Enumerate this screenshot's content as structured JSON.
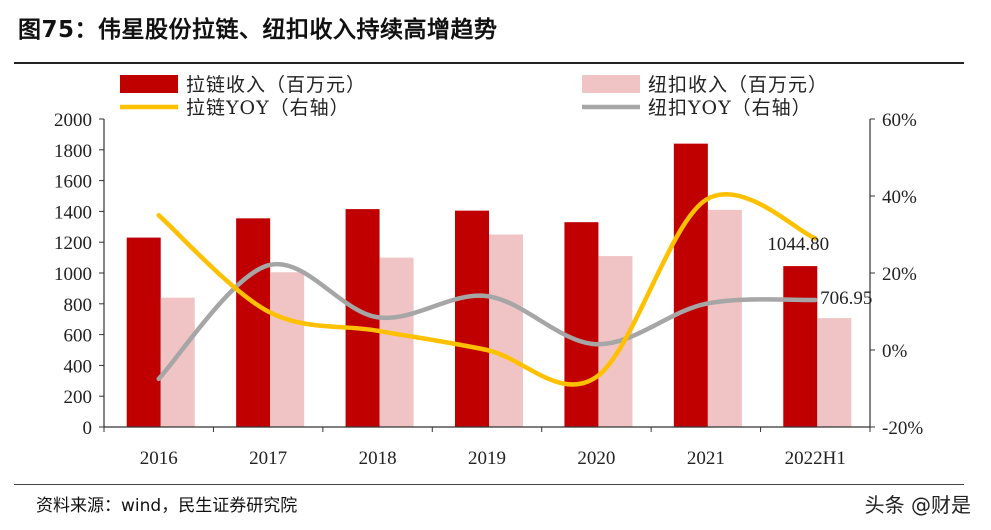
{
  "header": {
    "title": "图75：伟星股份拉链、纽扣收入持续高增趋势"
  },
  "footer": {
    "source": "资料来源：wind，民生证券研究院",
    "watermark": "头条 @财是"
  },
  "colors": {
    "zipper_bar": "#c00000",
    "button_bar": "#f0c4c4",
    "zipper_yoy": "#ffc000",
    "button_yoy": "#a6a6a6"
  },
  "chart_data": {
    "type": "bar",
    "title": "伟星股份拉链、纽扣收入持续高增趋势",
    "categories": [
      "2016",
      "2017",
      "2018",
      "2019",
      "2020",
      "2021",
      "2022H1"
    ],
    "series": [
      {
        "name": "拉链收入（百万元）",
        "kind": "bar",
        "axis": "left",
        "values": [
          1230,
          1355,
          1415,
          1405,
          1330,
          1840,
          1044.8
        ]
      },
      {
        "name": "纽扣收入（百万元）",
        "kind": "bar",
        "axis": "left",
        "values": [
          840,
          1005,
          1100,
          1250,
          1110,
          1410,
          706.95
        ]
      },
      {
        "name": "拉链YOY（右轴）",
        "kind": "line",
        "axis": "right",
        "values": [
          35,
          10,
          5,
          0,
          -7,
          39,
          29
        ]
      },
      {
        "name": "纽扣YOY（右轴）",
        "kind": "line",
        "axis": "right",
        "values": [
          -7.5,
          22,
          8.5,
          14,
          1.5,
          12,
          13
        ]
      }
    ],
    "left_axis": {
      "ylim": [
        0,
        2000
      ],
      "ticks": [
        "0",
        "200",
        "400",
        "600",
        "800",
        "1000",
        "1200",
        "1400",
        "1600",
        "1800",
        "2000"
      ]
    },
    "right_axis": {
      "ylim": [
        -20,
        60
      ],
      "ticks": [
        "-20%",
        "0%",
        "20%",
        "40%",
        "60%"
      ]
    },
    "data_labels": [
      {
        "series": 0,
        "index": 6,
        "text": "1044.80"
      },
      {
        "series": 1,
        "index": 6,
        "text": "706.95"
      }
    ],
    "legend": {
      "placement": "top",
      "entries": [
        "拉链收入（百万元）",
        "纽扣收入（百万元）",
        "拉链YOY（右轴）",
        "纽扣YOY（右轴）"
      ]
    },
    "grid": false
  }
}
